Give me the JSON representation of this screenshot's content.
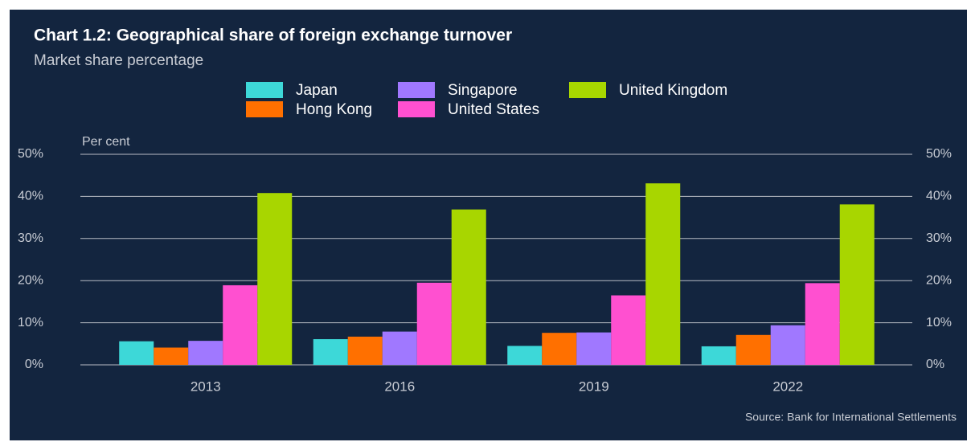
{
  "chart_data": {
    "type": "bar",
    "title": "Chart 1.2: Geographical share of foreign exchange turnover",
    "subtitle": "Market share percentage",
    "y_axis_label": "Per cent",
    "source": "Source: Bank for International Settlements",
    "categories": [
      "2013",
      "2016",
      "2019",
      "2022"
    ],
    "series": [
      {
        "name": "Japan",
        "color": "#3dd8d8",
        "values": [
          5.6,
          6.1,
          4.5,
          4.4
        ]
      },
      {
        "name": "Hong Kong",
        "color": "#ff7000",
        "values": [
          4.1,
          6.7,
          7.6,
          7.1
        ]
      },
      {
        "name": "Singapore",
        "color": "#a078ff",
        "values": [
          5.7,
          7.9,
          7.7,
          9.4
        ]
      },
      {
        "name": "United States",
        "color": "#ff50d0",
        "values": [
          18.9,
          19.5,
          16.5,
          19.4
        ]
      },
      {
        "name": "United Kingdom",
        "color": "#a8d600",
        "values": [
          40.8,
          36.9,
          43.1,
          38.1
        ]
      }
    ],
    "ylim": [
      0,
      50
    ],
    "yticks": [
      {
        "value": 0,
        "label": "0%"
      },
      {
        "value": 10,
        "label": "10%"
      },
      {
        "value": 20,
        "label": "20%"
      },
      {
        "value": 30,
        "label": "30%"
      },
      {
        "value": 40,
        "label": "40%"
      },
      {
        "value": 50,
        "label": "50%"
      }
    ],
    "grid": true,
    "mirror_y_axis": true
  }
}
